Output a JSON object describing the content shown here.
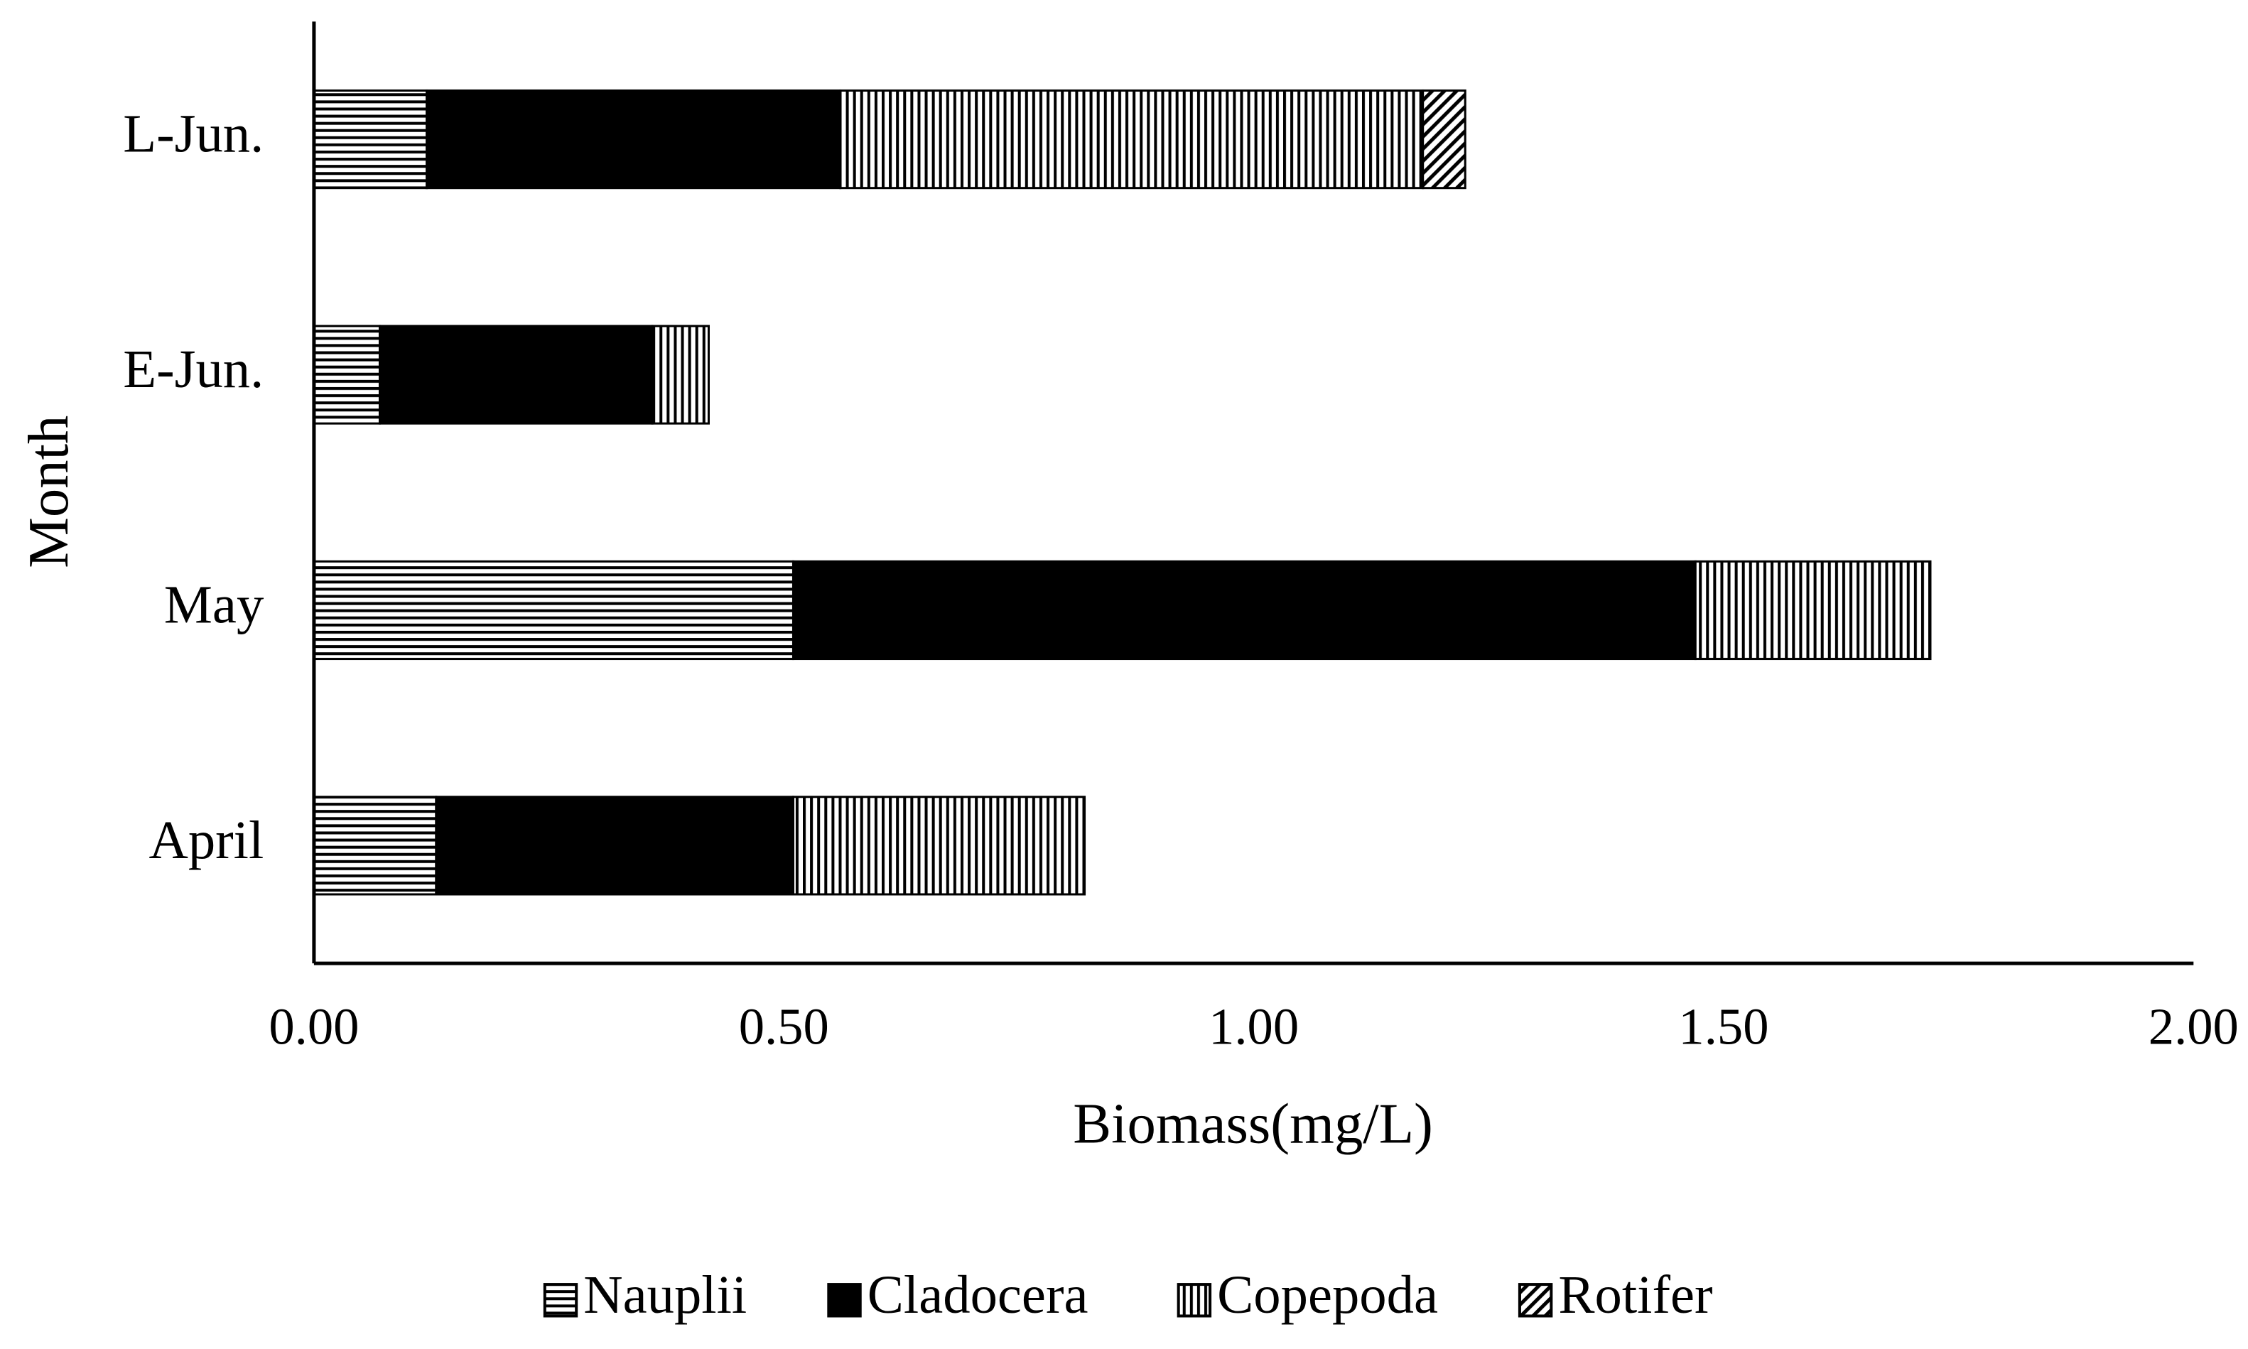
{
  "chart_data": {
    "type": "stacked-barh",
    "xlabel": "Biomass(mg/L)",
    "ylabel": "Month",
    "categories": [
      "April",
      "May",
      "E-Jun.",
      "L-Jun."
    ],
    "series": [
      {
        "name": "Nauplii",
        "color": "#000000",
        "pattern": "horizontal",
        "values": [
          0.13,
          0.51,
          0.07,
          0.12
        ]
      },
      {
        "name": "Cladocera",
        "color": "#000000",
        "pattern": "solid",
        "values": [
          0.38,
          0.96,
          0.29,
          0.44
        ]
      },
      {
        "name": "Copepoda",
        "color": "#000000",
        "pattern": "vertical",
        "values": [
          0.31,
          0.25,
          0.06,
          0.62
        ]
      },
      {
        "name": "Rotifer",
        "color": "#000000",
        "pattern": "diagonal",
        "values": [
          0,
          0,
          0,
          0.045
        ]
      }
    ],
    "xlim": [
      0,
      2
    ],
    "xticks": [
      {
        "value": 0,
        "label": "0.00"
      },
      {
        "value": 0.5,
        "label": "0.50"
      },
      {
        "value": 1,
        "label": "1.00"
      },
      {
        "value": 1.5,
        "label": "1.50"
      },
      {
        "value": 2,
        "label": "2.00"
      }
    ],
    "grid": false,
    "legend": "bottom"
  }
}
